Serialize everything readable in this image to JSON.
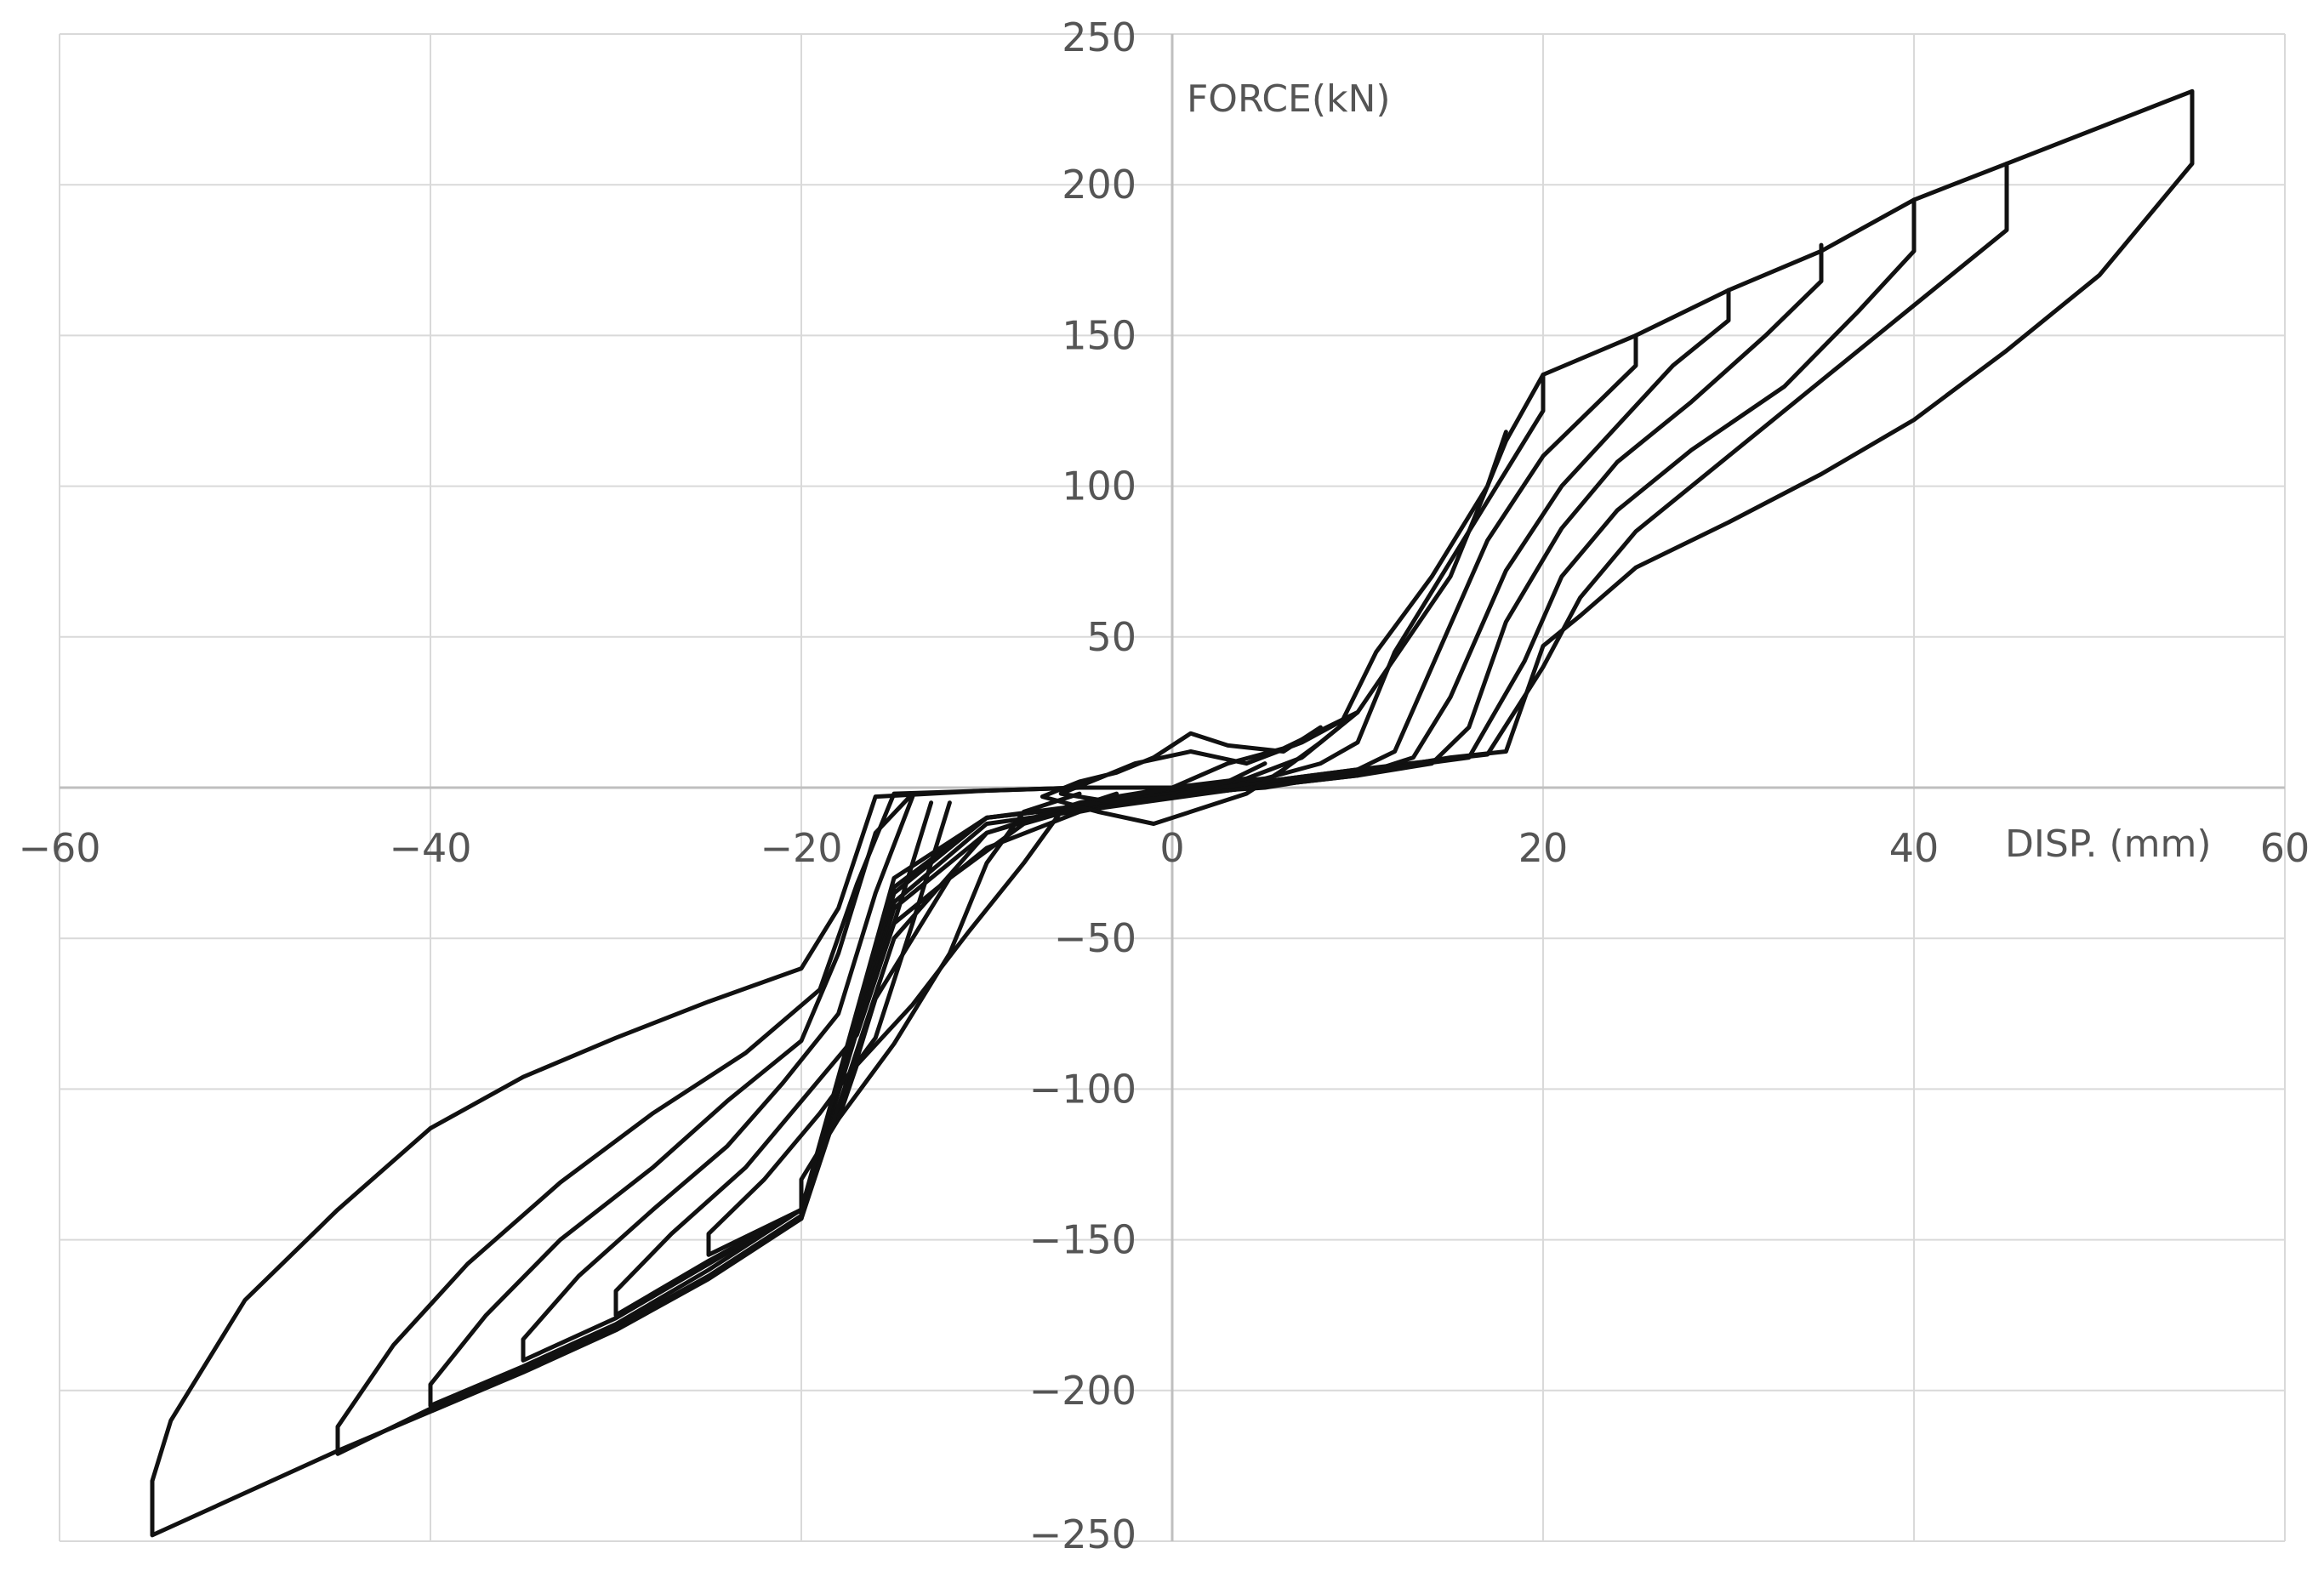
{
  "chart_data": {
    "type": "line",
    "title": "",
    "xlabel": "DISP. (mm)",
    "ylabel": "FORCE(kN)",
    "xlim": [
      -60,
      60
    ],
    "ylim": [
      -250,
      250
    ],
    "x_ticks": [
      -60,
      -40,
      -20,
      0,
      20,
      40,
      60
    ],
    "y_ticks": [
      250,
      200,
      150,
      100,
      50,
      -50,
      -100,
      -150,
      -200,
      -250
    ],
    "x_tick_labels": [
      "−60",
      "−40",
      "−20",
      "0",
      "20",
      "40",
      "60"
    ],
    "y_tick_labels": [
      "250",
      "200",
      "150",
      "100",
      "50",
      "−50",
      "−100",
      "−150",
      "−200",
      "−250"
    ],
    "grid": true,
    "line_color": "#111111",
    "grid_color": "#d9d9d9",
    "axis_color": "#bfbfbf",
    "series": [
      {
        "points": [
          [
            0,
            0
          ],
          [
            3,
            8
          ],
          [
            6,
            13
          ],
          [
            10,
            25
          ],
          [
            15,
            70
          ],
          [
            18,
            115
          ],
          [
            20,
            137
          ],
          [
            25,
            150
          ],
          [
            30,
            165
          ],
          [
            35,
            178
          ],
          [
            40,
            195
          ],
          [
            45,
            207
          ],
          [
            55,
            231
          ],
          [
            55,
            207
          ],
          [
            50,
            170
          ],
          [
            45,
            145
          ],
          [
            40,
            122
          ],
          [
            35,
            104
          ],
          [
            30,
            88
          ],
          [
            25,
            73
          ],
          [
            22,
            57
          ],
          [
            20,
            47
          ],
          [
            18,
            12
          ],
          [
            15,
            10
          ],
          [
            10,
            5
          ],
          [
            5,
            0
          ],
          [
            0,
            -2
          ],
          [
            -5,
            -8
          ],
          [
            -10,
            -20
          ],
          [
            -15,
            -45
          ],
          [
            -17,
            -80
          ],
          [
            -20,
            -143
          ],
          [
            -25,
            -163
          ],
          [
            -30,
            -180
          ],
          [
            -35,
            -194
          ],
          [
            -40,
            -207
          ],
          [
            -45,
            -220
          ],
          [
            -55,
            -248
          ],
          [
            -55,
            -230
          ],
          [
            -54,
            -210
          ],
          [
            -50,
            -170
          ],
          [
            -45,
            -140
          ],
          [
            -40,
            -113
          ],
          [
            -35,
            -96
          ],
          [
            -30,
            -83
          ],
          [
            -25,
            -71
          ],
          [
            -20,
            -60
          ],
          [
            -18,
            -40
          ],
          [
            -16,
            -3
          ],
          [
            -10,
            -1
          ],
          [
            -5,
            0
          ],
          [
            0,
            0
          ]
        ]
      },
      {
        "points": [
          [
            45,
            207
          ],
          [
            45,
            185
          ],
          [
            40,
            160
          ],
          [
            35,
            135
          ],
          [
            30,
            110
          ],
          [
            25,
            85
          ],
          [
            22,
            63
          ],
          [
            20,
            40
          ],
          [
            17,
            11
          ],
          [
            10,
            6
          ],
          [
            5,
            2
          ],
          [
            0,
            -1
          ],
          [
            -5,
            -6
          ],
          [
            -10,
            -15
          ],
          [
            -15,
            -40
          ],
          [
            -20,
            -142
          ],
          [
            -25,
            -162
          ],
          [
            -30,
            -179
          ],
          [
            -35,
            -193
          ],
          [
            -40,
            -206
          ],
          [
            -45,
            -221
          ],
          [
            -45,
            -212
          ],
          [
            -42,
            -185
          ],
          [
            -38,
            -158
          ],
          [
            -33,
            -131
          ],
          [
            -28,
            -108
          ],
          [
            -23,
            -88
          ],
          [
            -19,
            -67
          ],
          [
            -17,
            -32
          ],
          [
            -15,
            -2
          ],
          [
            -5,
            0
          ]
        ]
      },
      {
        "points": [
          [
            40,
            195
          ],
          [
            40,
            178
          ],
          [
            37,
            158
          ],
          [
            33,
            133
          ],
          [
            28,
            112
          ],
          [
            24,
            92
          ],
          [
            21,
            70
          ],
          [
            19,
            42
          ],
          [
            16,
            10
          ],
          [
            10,
            5
          ],
          [
            -10,
            -12
          ],
          [
            -15,
            -38
          ],
          [
            -20,
            -140
          ],
          [
            -25,
            -160
          ],
          [
            -30,
            -178
          ],
          [
            -35,
            -192
          ],
          [
            -40,
            -205
          ],
          [
            -40,
            -198
          ],
          [
            -37,
            -175
          ],
          [
            -33,
            -150
          ],
          [
            -28,
            -126
          ],
          [
            -24,
            -104
          ],
          [
            -20,
            -84
          ],
          [
            -18,
            -55
          ],
          [
            -16,
            -15
          ],
          [
            -14,
            -2
          ]
        ]
      },
      {
        "points": [
          [
            35,
            180
          ],
          [
            35,
            168
          ],
          [
            32,
            150
          ],
          [
            28,
            128
          ],
          [
            24,
            108
          ],
          [
            21,
            86
          ],
          [
            18,
            55
          ],
          [
            16,
            20
          ],
          [
            14,
            8
          ],
          [
            10,
            4
          ],
          [
            -10,
            -10
          ],
          [
            -15,
            -35
          ],
          [
            -20,
            -140
          ],
          [
            -25,
            -158
          ],
          [
            -30,
            -176
          ],
          [
            -35,
            -190
          ],
          [
            -35,
            -183
          ],
          [
            -32,
            -162
          ],
          [
            -28,
            -140
          ],
          [
            -24,
            -119
          ],
          [
            -21,
            -98
          ],
          [
            -18,
            -75
          ],
          [
            -16,
            -35
          ],
          [
            -14,
            -3
          ]
        ]
      },
      {
        "points": [
          [
            30,
            165
          ],
          [
            30,
            155
          ],
          [
            27,
            140
          ],
          [
            24,
            120
          ],
          [
            21,
            100
          ],
          [
            18,
            72
          ],
          [
            15,
            30
          ],
          [
            13,
            10
          ],
          [
            10,
            4
          ],
          [
            -10,
            -10
          ],
          [
            -15,
            -33
          ],
          [
            -20,
            -140
          ],
          [
            -25,
            -157
          ],
          [
            -30,
            -175
          ],
          [
            -30,
            -167
          ],
          [
            -27,
            -148
          ],
          [
            -23,
            -126
          ],
          [
            -20,
            -104
          ],
          [
            -17,
            -82
          ],
          [
            -15,
            -45
          ],
          [
            -13,
            -5
          ]
        ]
      },
      {
        "points": [
          [
            25,
            150
          ],
          [
            25,
            140
          ],
          [
            23,
            128
          ],
          [
            20,
            110
          ],
          [
            17,
            82
          ],
          [
            14,
            40
          ],
          [
            12,
            12
          ],
          [
            10,
            6
          ],
          [
            -10,
            -10
          ],
          [
            -15,
            -30
          ],
          [
            -20,
            -140
          ],
          [
            -25,
            -155
          ],
          [
            -25,
            -148
          ],
          [
            -22,
            -130
          ],
          [
            -19,
            -108
          ],
          [
            -16,
            -83
          ],
          [
            -14,
            -45
          ],
          [
            -12,
            -5
          ]
        ]
      },
      {
        "points": [
          [
            20,
            137
          ],
          [
            20,
            125
          ],
          [
            18,
            105
          ],
          [
            15,
            75
          ],
          [
            12,
            45
          ],
          [
            10,
            15
          ],
          [
            8,
            8
          ],
          [
            5,
            3
          ],
          [
            0,
            0
          ],
          [
            -5,
            -5
          ],
          [
            -10,
            -15
          ],
          [
            -15,
            -50
          ],
          [
            -20,
            -143
          ],
          [
            -20,
            -130
          ],
          [
            -18,
            -110
          ],
          [
            -15,
            -85
          ],
          [
            -12,
            -55
          ],
          [
            -10,
            -25
          ],
          [
            -8,
            -8
          ],
          [
            -5,
            -2
          ]
        ]
      },
      {
        "points": [
          [
            18,
            118
          ],
          [
            17,
            100
          ],
          [
            14,
            70
          ],
          [
            11,
            45
          ],
          [
            9,
            20
          ],
          [
            7,
            10
          ],
          [
            4,
            3
          ],
          [
            0,
            0
          ],
          [
            -4,
            -5
          ],
          [
            -8,
            -12
          ],
          [
            -12,
            -30
          ],
          [
            -16,
            -70
          ],
          [
            -18,
            -110
          ],
          [
            -17,
            -92
          ],
          [
            -14,
            -72
          ],
          [
            -11,
            -48
          ],
          [
            -8,
            -25
          ],
          [
            -6,
            -8
          ],
          [
            -3,
            -2
          ]
        ]
      },
      {
        "points": [
          [
            8,
            20
          ],
          [
            6,
            12
          ],
          [
            3,
            14
          ],
          [
            1,
            18
          ],
          [
            -1,
            10
          ],
          [
            -3,
            5
          ],
          [
            -5,
            2
          ],
          [
            -7,
            -3
          ],
          [
            -4,
            -8
          ],
          [
            -1,
            -12
          ],
          [
            2,
            -6
          ],
          [
            4,
            -2
          ],
          [
            6,
            6
          ],
          [
            8,
            15
          ],
          [
            10,
            25
          ],
          [
            7,
            15
          ],
          [
            4,
            8
          ],
          [
            1,
            12
          ],
          [
            -2,
            8
          ],
          [
            -4,
            3
          ],
          [
            -6,
            -2
          ],
          [
            -3,
            -5
          ],
          [
            0,
            -3
          ],
          [
            3,
            2
          ],
          [
            5,
            8
          ]
        ]
      }
    ]
  }
}
